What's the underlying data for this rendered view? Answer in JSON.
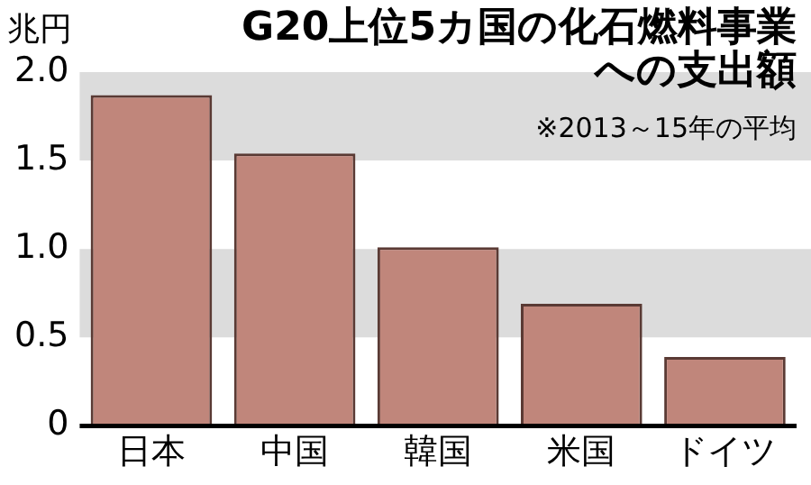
{
  "chart_data": {
    "type": "bar",
    "title": "G20上位5カ国の化石燃料事業への支出額",
    "subtitle": "※2013～15年の平均",
    "ylabel": "兆円",
    "categories": [
      "日本",
      "中国",
      "韓国",
      "米国",
      "ドイツ"
    ],
    "values": [
      1.87,
      1.54,
      1.01,
      0.69,
      0.39
    ],
    "color": "#c0867b",
    "ylim": [
      0,
      2
    ],
    "yticks": [
      {
        "value": 0,
        "label": "0"
      },
      {
        "value": 0.5,
        "label": "0.5"
      },
      {
        "value": 1,
        "label": "1.0"
      },
      {
        "value": 1.5,
        "label": "1.5"
      },
      {
        "value": 2,
        "label": "2.0"
      }
    ],
    "bands": [
      {
        "axis": "y",
        "from": 0.5,
        "to": 1,
        "color": "#dcdcdc"
      },
      {
        "axis": "y",
        "from": 1.5,
        "to": 2,
        "color": "#dcdcdc"
      }
    ],
    "grid": false,
    "legend": false
  }
}
